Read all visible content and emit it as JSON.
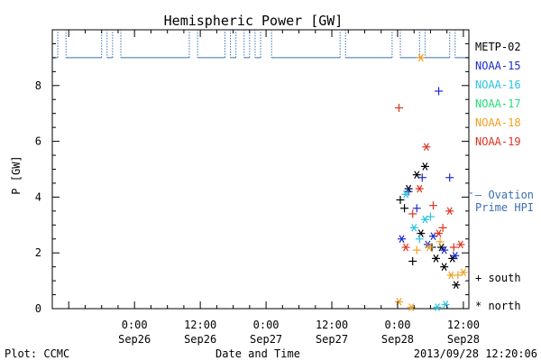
{
  "chart_data": {
    "type": "scatter",
    "title": "Hemispheric Power [GW]",
    "xlabel": "Date and Time",
    "ylabel": "P [GW]",
    "ylim": [
      0,
      10
    ],
    "xlim": [
      "2013-09-25 09:00",
      "2013-09-28 13:00"
    ],
    "y_ticks": [
      0,
      2,
      4,
      6,
      8
    ],
    "x_ticks": [
      {
        "time": "2013-09-26 00:00",
        "line1": "0:00",
        "line2": "Sep26"
      },
      {
        "time": "2013-09-26 12:00",
        "line1": "12:00",
        "line2": "Sep26"
      },
      {
        "time": "2013-09-27 00:00",
        "line1": "0:00",
        "line2": "Sep27"
      },
      {
        "time": "2013-09-27 12:00",
        "line1": "12:00",
        "line2": "Sep27"
      },
      {
        "time": "2013-09-28 00:00",
        "line1": "0:00",
        "line2": "Sep28"
      },
      {
        "time": "2013-09-28 12:00",
        "line1": "12:00",
        "line2": "Sep28"
      }
    ],
    "grid": false,
    "legend_position": "right",
    "series": [
      {
        "name": "METP-02",
        "color": "#000000",
        "points": [
          {
            "t": "2013-09-28 00:30",
            "y": 3.9,
            "hemi": "south"
          },
          {
            "t": "2013-09-28 01:15",
            "y": 3.6,
            "hemi": "south"
          },
          {
            "t": "2013-09-28 02:00",
            "y": 4.3,
            "hemi": "north"
          },
          {
            "t": "2013-09-28 02:45",
            "y": 1.7,
            "hemi": "south"
          },
          {
            "t": "2013-09-28 03:30",
            "y": 4.8,
            "hemi": "north"
          },
          {
            "t": "2013-09-28 04:15",
            "y": 2.7,
            "hemi": "north"
          },
          {
            "t": "2013-09-28 05:00",
            "y": 5.1,
            "hemi": "north"
          },
          {
            "t": "2013-09-28 06:15",
            "y": 2.2,
            "hemi": "south"
          },
          {
            "t": "2013-09-28 07:00",
            "y": 1.8,
            "hemi": "north"
          },
          {
            "t": "2013-09-28 08:00",
            "y": 2.2,
            "hemi": "north"
          },
          {
            "t": "2013-09-28 08:30",
            "y": 1.5,
            "hemi": "north"
          },
          {
            "t": "2013-09-28 10:00",
            "y": 1.8,
            "hemi": "north"
          },
          {
            "t": "2013-09-28 10:40",
            "y": 0.85,
            "hemi": "north"
          }
        ]
      },
      {
        "name": "NOAA-15",
        "color": "#1c2bc9",
        "points": [
          {
            "t": "2013-09-28 00:45",
            "y": 2.5,
            "hemi": "north"
          },
          {
            "t": "2013-09-28 02:00",
            "y": 4.2,
            "hemi": "south"
          },
          {
            "t": "2013-09-28 03:30",
            "y": 3.6,
            "hemi": "south"
          },
          {
            "t": "2013-09-28 04:30",
            "y": 4.7,
            "hemi": "south"
          },
          {
            "t": "2013-09-28 05:30",
            "y": 2.3,
            "hemi": "north"
          },
          {
            "t": "2013-09-28 06:30",
            "y": 2.6,
            "hemi": "north"
          },
          {
            "t": "2013-09-28 07:30",
            "y": 7.8,
            "hemi": "south"
          },
          {
            "t": "2013-09-28 08:30",
            "y": 2.1,
            "hemi": "north"
          },
          {
            "t": "2013-09-28 09:30",
            "y": 4.7,
            "hemi": "south"
          },
          {
            "t": "2013-09-28 10:30",
            "y": 1.9,
            "hemi": "north"
          }
        ]
      },
      {
        "name": "NOAA-16",
        "color": "#27c4e0",
        "points": [
          {
            "t": "2013-09-28 01:30",
            "y": 4.1,
            "hemi": "north"
          },
          {
            "t": "2013-09-28 03:00",
            "y": 2.9,
            "hemi": "north"
          },
          {
            "t": "2013-09-28 04:00",
            "y": 2.5,
            "hemi": "south"
          },
          {
            "t": "2013-09-28 05:00",
            "y": 3.2,
            "hemi": "north"
          },
          {
            "t": "2013-09-28 06:00",
            "y": 3.3,
            "hemi": "south"
          },
          {
            "t": "2013-09-28 07:15",
            "y": 0.05,
            "hemi": "north"
          },
          {
            "t": "2013-09-28 08:45",
            "y": 0.15,
            "hemi": "north"
          }
        ]
      },
      {
        "name": "NOAA-17",
        "color": "#22dd7a",
        "points": []
      },
      {
        "name": "NOAA-18",
        "color": "#f0a020",
        "points": [
          {
            "t": "2013-09-28 00:15",
            "y": 0.25,
            "hemi": "north"
          },
          {
            "t": "2013-09-28 02:30",
            "y": 0.05,
            "hemi": "north"
          },
          {
            "t": "2013-09-28 03:30",
            "y": 2.1,
            "hemi": "south"
          },
          {
            "t": "2013-09-28 04:15",
            "y": 9.0,
            "hemi": "north"
          },
          {
            "t": "2013-09-28 05:45",
            "y": 2.2,
            "hemi": "north"
          },
          {
            "t": "2013-09-28 07:45",
            "y": 2.4,
            "hemi": "south"
          },
          {
            "t": "2013-09-28 09:45",
            "y": 1.2,
            "hemi": "north"
          },
          {
            "t": "2013-09-28 11:00",
            "y": 1.2,
            "hemi": "south"
          },
          {
            "t": "2013-09-28 12:00",
            "y": 1.3,
            "hemi": "north"
          }
        ]
      },
      {
        "name": "NOAA-19",
        "color": "#dd3322",
        "points": [
          {
            "t": "2013-09-28 00:15",
            "y": 7.2,
            "hemi": "south"
          },
          {
            "t": "2013-09-28 01:30",
            "y": 2.2,
            "hemi": "north"
          },
          {
            "t": "2013-09-28 02:45",
            "y": 3.4,
            "hemi": "south"
          },
          {
            "t": "2013-09-28 04:00",
            "y": 4.3,
            "hemi": "north"
          },
          {
            "t": "2013-09-28 05:15",
            "y": 5.8,
            "hemi": "north"
          },
          {
            "t": "2013-09-28 06:30",
            "y": 3.7,
            "hemi": "south"
          },
          {
            "t": "2013-09-28 07:30",
            "y": 2.7,
            "hemi": "north"
          },
          {
            "t": "2013-09-28 08:15",
            "y": 2.9,
            "hemi": "south"
          },
          {
            "t": "2013-09-28 09:30",
            "y": 3.5,
            "hemi": "north"
          },
          {
            "t": "2013-09-28 10:15",
            "y": 2.2,
            "hemi": "south"
          },
          {
            "t": "2013-09-28 11:30",
            "y": 2.3,
            "hemi": "north"
          }
        ]
      }
    ],
    "ovation": {
      "name": "– Ovation",
      "name2": "Prime HPI",
      "color": "#3a6fb0",
      "base_level": 9.0,
      "spike_level": 10.0,
      "spikes": [
        [
          "2013-09-25 10:00",
          "2013-09-25 11:30"
        ],
        [
          "2013-09-25 18:00",
          "2013-09-25 19:00"
        ],
        [
          "2013-09-25 20:00",
          "2013-09-25 21:30"
        ],
        [
          "2013-09-26 10:00",
          "2013-09-26 11:30"
        ],
        [
          "2013-09-26 16:30",
          "2013-09-26 17:30"
        ],
        [
          "2013-09-26 18:30",
          "2013-09-26 20:00"
        ],
        [
          "2013-09-26 21:00",
          "2013-09-26 22:00"
        ],
        [
          "2013-09-26 23:00",
          "2013-09-27 01:00"
        ],
        [
          "2013-09-27 13:30",
          "2013-09-27 14:30"
        ],
        [
          "2013-09-27 23:00",
          "2013-09-28 00:30"
        ],
        [
          "2013-09-28 04:00",
          "2013-09-28 05:00"
        ],
        [
          "2013-09-28 09:30",
          "2013-09-28 10:30"
        ]
      ]
    },
    "hemisphere_legend": {
      "south": "+ south",
      "north": "* north"
    }
  },
  "footer": {
    "plot_label": "Plot: CCMC",
    "timestamp": "2013/09/28 12:20:06"
  }
}
